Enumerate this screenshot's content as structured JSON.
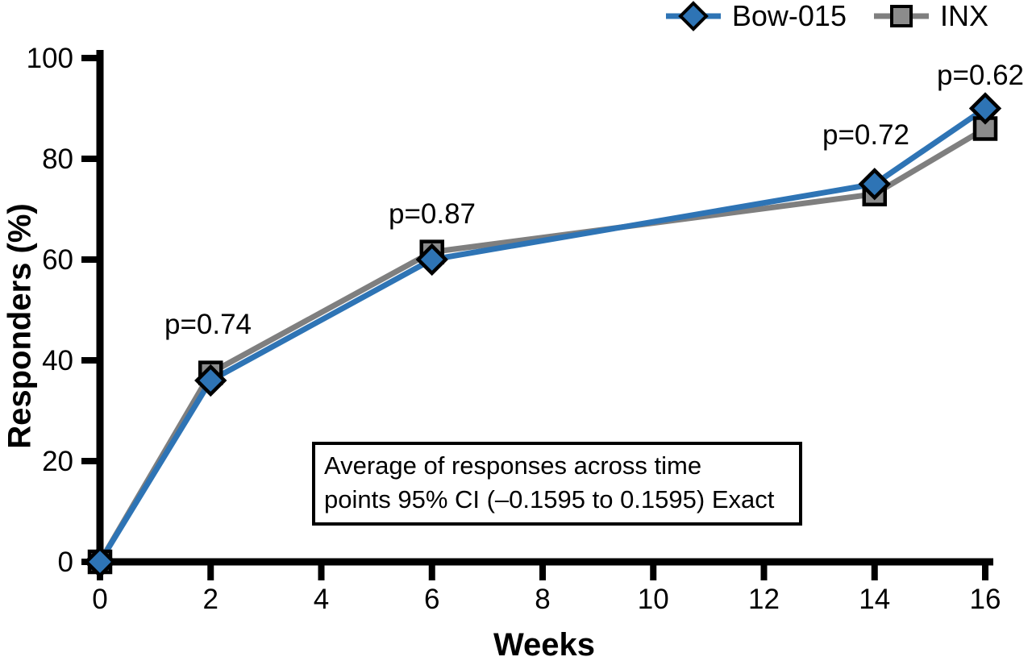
{
  "chart_data": {
    "type": "line",
    "title": "",
    "xlabel": "Weeks",
    "ylabel": "Responders (%)",
    "x": [
      0,
      2,
      6,
      14,
      16
    ],
    "xticks": [
      0,
      2,
      4,
      6,
      8,
      10,
      12,
      14,
      16
    ],
    "yticks": [
      0,
      20,
      40,
      60,
      80,
      100
    ],
    "xlim": [
      0,
      16
    ],
    "ylim": [
      0,
      100
    ],
    "grid": false,
    "legend_position": "top-right",
    "series": [
      {
        "name": "Bow-015",
        "marker": "diamond",
        "color": "#2e74b5",
        "values": [
          0,
          36,
          60,
          75,
          90
        ]
      },
      {
        "name": "INX",
        "marker": "square",
        "color": "#7f7f7f",
        "marker_fill": "#8c8c8c",
        "values": [
          0,
          37.5,
          61.5,
          73,
          86
        ]
      }
    ],
    "p_labels": [
      {
        "text": "p=0.74",
        "week": 2
      },
      {
        "text": "p=0.87",
        "week": 6
      },
      {
        "text": "p=0.72",
        "week": 14
      },
      {
        "text": "p=0.62",
        "week": 16
      }
    ],
    "annotation": {
      "line1": "Average of responses across time",
      "line2": "points 95% CI (–0.1595 to 0.1595) Exact"
    }
  }
}
